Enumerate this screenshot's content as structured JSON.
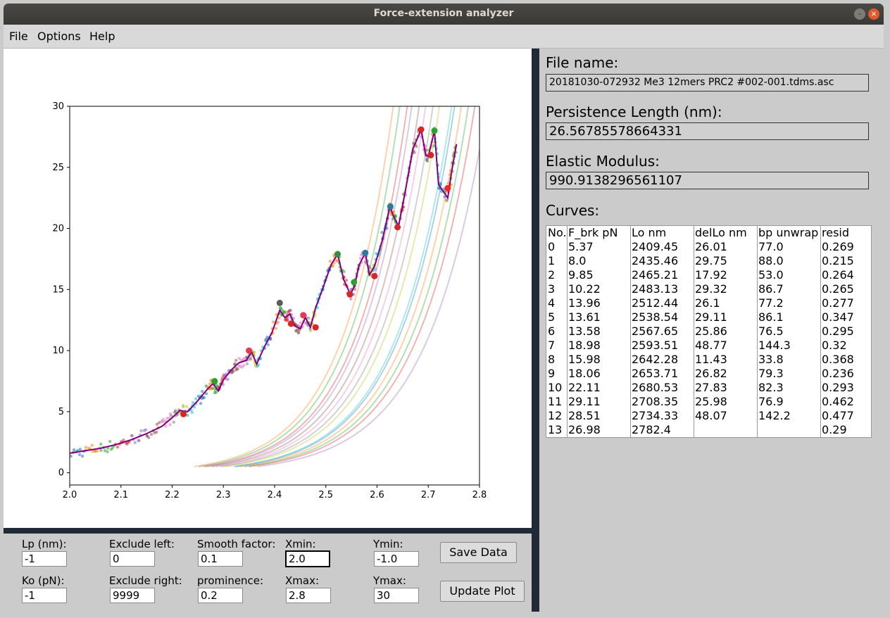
{
  "window": {
    "title": "Force-extension analyzer"
  },
  "menu": {
    "items": [
      "File",
      "Options",
      "Help"
    ]
  },
  "info": {
    "file_label": "File name:",
    "file_value": "20181030-072932 Me3 12mers PRC2 #002-001.tdms.asc",
    "lp_label": "Persistence Length (nm):",
    "lp_value": "26.56785578664331",
    "em_label": "Elastic Modulus:",
    "em_value": "990.9138296561107",
    "curves_label": "Curves:"
  },
  "curves": {
    "columns": [
      "No.",
      "F_brk pN",
      "Lo nm",
      "delLo nm",
      "bp unwrap",
      "resid"
    ],
    "rows": [
      [
        "0",
        "5.37",
        "2409.45",
        "26.01",
        "77.0",
        "0.269"
      ],
      [
        "1",
        "8.0",
        "2435.46",
        "29.75",
        "88.0",
        "0.215"
      ],
      [
        "2",
        "9.85",
        "2465.21",
        "17.92",
        "53.0",
        "0.264"
      ],
      [
        "3",
        "10.22",
        "2483.13",
        "29.32",
        "86.7",
        "0.265"
      ],
      [
        "4",
        "13.96",
        "2512.44",
        "26.1",
        "77.2",
        "0.277"
      ],
      [
        "5",
        "13.61",
        "2538.54",
        "29.11",
        "86.1",
        "0.347"
      ],
      [
        "6",
        "13.58",
        "2567.65",
        "25.86",
        "76.5",
        "0.295"
      ],
      [
        "7",
        "18.98",
        "2593.51",
        "48.77",
        "144.3",
        "0.32"
      ],
      [
        "8",
        "15.98",
        "2642.28",
        "11.43",
        "33.8",
        "0.368"
      ],
      [
        "9",
        "18.06",
        "2653.71",
        "26.82",
        "79.3",
        "0.236"
      ],
      [
        "10",
        "22.11",
        "2680.53",
        "27.83",
        "82.3",
        "0.293"
      ],
      [
        "11",
        "29.11",
        "2708.35",
        "25.98",
        "76.9",
        "0.462"
      ],
      [
        "12",
        "28.51",
        "2734.33",
        "48.07",
        "142.2",
        "0.477"
      ],
      [
        "13",
        "26.98",
        "2782.4",
        "",
        "",
        "0.29"
      ]
    ]
  },
  "controls": {
    "lp_label": "Lp (nm):",
    "lp_value": "-1",
    "ko_label": "Ko (pN):",
    "ko_value": "-1",
    "excl_left_label": "Exclude left:",
    "excl_left_value": "0",
    "excl_right_label": "Exclude right:",
    "excl_right_value": "9999",
    "smooth_label": "Smooth factor:",
    "smooth_value": "0.1",
    "prom_label": "prominence:",
    "prom_value": "0.2",
    "xmin_label": "Xmin:",
    "xmin_value": "2.0",
    "xmax_label": "Xmax:",
    "xmax_value": "2.8",
    "ymin_label": "Ymin:",
    "ymin_value": "-1.0",
    "ymax_label": "Ymax:",
    "ymax_value": "30",
    "save_label": "Save Data",
    "update_label": "Update Plot"
  },
  "chart_data": {
    "type": "line",
    "xlim": [
      2.0,
      2.8
    ],
    "ylim": [
      -1,
      30
    ],
    "x_ticks": [
      "2.0",
      "2.1",
      "2.2",
      "2.3",
      "2.4",
      "2.5",
      "2.6",
      "2.7",
      "2.8"
    ],
    "y_ticks": [
      "0",
      "5",
      "10",
      "15",
      "20",
      "25",
      "30"
    ],
    "grid": false,
    "smoothed_trace": {
      "color": "#800080",
      "x": [
        2.0,
        2.03,
        2.06,
        2.09,
        2.12,
        2.15,
        2.18,
        2.2,
        2.215,
        2.23,
        2.25,
        2.27,
        2.28,
        2.29,
        2.3,
        2.315,
        2.33,
        2.345,
        2.355,
        2.365,
        2.38,
        2.395,
        2.41,
        2.42,
        2.43,
        2.44,
        2.45,
        2.46,
        2.47,
        2.48,
        2.495,
        2.51,
        2.523,
        2.535,
        2.548,
        2.556,
        2.565,
        2.577,
        2.585,
        2.595,
        2.61,
        2.625,
        2.632,
        2.642,
        2.655,
        2.67,
        2.686,
        2.695,
        2.7,
        2.712,
        2.72,
        2.738,
        2.745,
        2.755
      ],
      "y": [
        1.6,
        1.8,
        2.0,
        2.3,
        2.7,
        3.2,
        3.8,
        4.5,
        5.1,
        5.0,
        5.9,
        6.9,
        7.3,
        6.7,
        7.6,
        8.4,
        9.0,
        9.2,
        9.9,
        8.9,
        10.3,
        11.5,
        13.3,
        12.7,
        13.0,
        12.0,
        11.8,
        12.7,
        11.9,
        13.5,
        15.2,
        17.0,
        17.9,
        15.8,
        14.6,
        15.3,
        17.0,
        18.0,
        16.2,
        16.9,
        19.0,
        21.8,
        21.0,
        20.2,
        23.0,
        26.5,
        28.1,
        26.0,
        25.9,
        28.0,
        23.6,
        22.5,
        24.5,
        26.9
      ]
    },
    "break_markers": {
      "x": [
        2.222,
        2.283,
        2.35,
        2.41,
        2.432,
        2.456,
        2.48,
        2.523,
        2.547,
        2.555,
        2.577,
        2.595,
        2.626,
        2.64,
        2.686,
        2.705,
        2.712,
        2.738
      ],
      "y": [
        4.8,
        7.5,
        10.0,
        13.9,
        12.2,
        12.9,
        11.9,
        17.9,
        14.6,
        15.6,
        18.0,
        16.1,
        21.8,
        20.1,
        28.1,
        26.0,
        28.0,
        23.3
      ]
    },
    "wlc_fits": {
      "lo_nm": [
        2409.45,
        2435.46,
        2465.21,
        2483.13,
        2512.44,
        2538.54,
        2567.65,
        2593.51,
        2642.28,
        2653.71,
        2680.53,
        2708.35,
        2734.33,
        2782.4
      ],
      "lp_nm": 26.56785578664331,
      "ko_pN": 990.9138296561107
    }
  }
}
